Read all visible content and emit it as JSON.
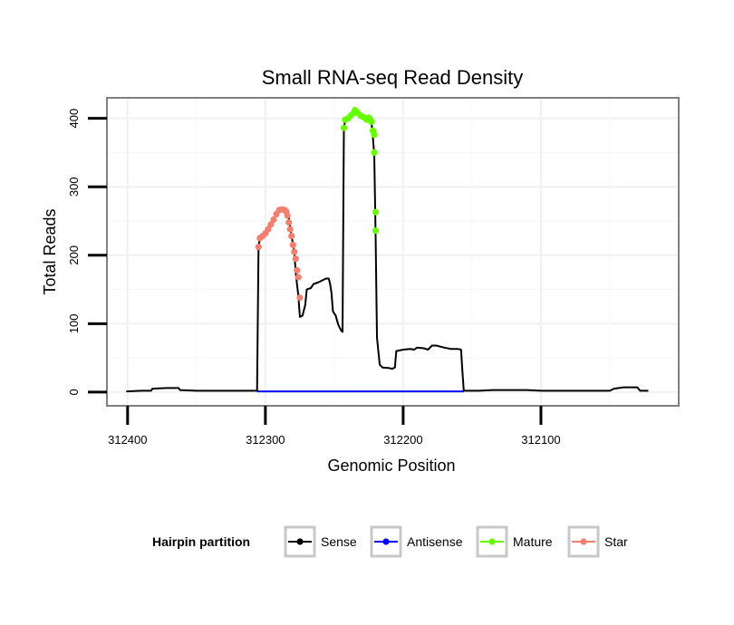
{
  "chart_data": {
    "type": "line",
    "title": "Small RNA-seq Read Density",
    "xlabel": "Genomic Position",
    "ylabel": "Total Reads",
    "xlim": [
      312000,
      312415
    ],
    "x_reversed": true,
    "ylim": [
      -20,
      430
    ],
    "x_ticks": [
      312400,
      312300,
      312200,
      312100
    ],
    "x_tick_labels": [
      "312400",
      "312300",
      "312200",
      "312100"
    ],
    "y_ticks": [
      0,
      100,
      200,
      300,
      400
    ],
    "y_tick_labels": [
      "0",
      "100",
      "200",
      "300",
      "400"
    ],
    "grid": true,
    "legend": {
      "title": "Hairpin partition",
      "position": "bottom",
      "entries": [
        {
          "name": "Sense",
          "color": "#000000"
        },
        {
          "name": "Antisense",
          "color": "#0000ff"
        },
        {
          "name": "Mature",
          "color": "#66ff00"
        },
        {
          "name": "Star",
          "color": "#f08070"
        }
      ]
    },
    "series": [
      {
        "name": "Sense",
        "color": "#000000",
        "markers": false,
        "points": [
          [
            312401,
            1
          ],
          [
            312390,
            2
          ],
          [
            312383,
            2
          ],
          [
            312382,
            5
          ],
          [
            312372,
            6
          ],
          [
            312363,
            6
          ],
          [
            312362,
            3
          ],
          [
            312350,
            2
          ],
          [
            312306,
            2
          ],
          [
            312305,
            212
          ],
          [
            312304,
            225
          ],
          [
            312300,
            232
          ],
          [
            312296,
            245
          ],
          [
            312292,
            260
          ],
          [
            312288,
            266
          ],
          [
            312285,
            265
          ],
          [
            312283,
            255
          ],
          [
            312281,
            228
          ],
          [
            312279,
            205
          ],
          [
            312278,
            175
          ],
          [
            312276,
            140
          ],
          [
            312275,
            110
          ],
          [
            312273,
            112
          ],
          [
            312271,
            128
          ],
          [
            312270,
            150
          ],
          [
            312267,
            152
          ],
          [
            312265,
            158
          ],
          [
            312262,
            160
          ],
          [
            312260,
            162
          ],
          [
            312258,
            164
          ],
          [
            312256,
            166
          ],
          [
            312254,
            166
          ],
          [
            312253,
            158
          ],
          [
            312252,
            145
          ],
          [
            312251,
            118
          ],
          [
            312249,
            112
          ],
          [
            312247,
            98
          ],
          [
            312245,
            90
          ],
          [
            312244,
            88
          ],
          [
            312243,
            386
          ],
          [
            312242,
            398
          ],
          [
            312238,
            404
          ],
          [
            312235,
            410
          ],
          [
            312230,
            405
          ],
          [
            312226,
            400
          ],
          [
            312223,
            395
          ],
          [
            312222,
            372
          ],
          [
            312221,
            348
          ],
          [
            312220,
            230
          ],
          [
            312219,
            80
          ],
          [
            312218,
            60
          ],
          [
            312217,
            40
          ],
          [
            312215,
            36
          ],
          [
            312210,
            35
          ],
          [
            312208,
            34
          ],
          [
            312206,
            36
          ],
          [
            312205,
            60
          ],
          [
            312200,
            62
          ],
          [
            312195,
            63
          ],
          [
            312192,
            62
          ],
          [
            312190,
            65
          ],
          [
            312185,
            64
          ],
          [
            312182,
            62
          ],
          [
            312179,
            68
          ],
          [
            312176,
            68
          ],
          [
            312170,
            65
          ],
          [
            312165,
            63
          ],
          [
            312160,
            63
          ],
          [
            312158,
            62
          ],
          [
            312157,
            30
          ],
          [
            312156,
            2
          ],
          [
            312145,
            2
          ],
          [
            312135,
            3
          ],
          [
            312125,
            3
          ],
          [
            312110,
            3
          ],
          [
            312100,
            2
          ],
          [
            312075,
            2
          ],
          [
            312050,
            2
          ],
          [
            312047,
            5
          ],
          [
            312040,
            7
          ],
          [
            312030,
            7
          ],
          [
            312028,
            2
          ],
          [
            312022,
            2
          ]
        ]
      },
      {
        "name": "Antisense",
        "color": "#0000ff",
        "markers": false,
        "points": [
          [
            312306,
            1
          ],
          [
            312156,
            1
          ]
        ]
      },
      {
        "name": "Star",
        "color": "#f08070",
        "markers": true,
        "points": [
          [
            312305,
            212
          ],
          [
            312304,
            225
          ],
          [
            312302,
            228
          ],
          [
            312300,
            232
          ],
          [
            312298,
            238
          ],
          [
            312296,
            245
          ],
          [
            312294,
            252
          ],
          [
            312292,
            260
          ],
          [
            312290,
            266
          ],
          [
            312288,
            267
          ],
          [
            312286,
            266
          ],
          [
            312285,
            264
          ],
          [
            312284,
            258
          ],
          [
            312283,
            248
          ],
          [
            312282,
            238
          ],
          [
            312281,
            228
          ],
          [
            312280,
            215
          ],
          [
            312279,
            205
          ],
          [
            312278,
            195
          ],
          [
            312277,
            178
          ],
          [
            312276,
            168
          ],
          [
            312275,
            138
          ]
        ]
      },
      {
        "name": "Mature",
        "color": "#66ff00",
        "markers": true,
        "points": [
          [
            312243,
            386
          ],
          [
            312242,
            398
          ],
          [
            312240,
            400
          ],
          [
            312238,
            404
          ],
          [
            312236,
            408
          ],
          [
            312235,
            412
          ],
          [
            312233,
            408
          ],
          [
            312231,
            404
          ],
          [
            312229,
            402
          ],
          [
            312227,
            399
          ],
          [
            312226,
            398
          ],
          [
            312225,
            401
          ],
          [
            312224,
            398
          ],
          [
            312223,
            395
          ],
          [
            312222,
            382
          ],
          [
            312221,
            376
          ],
          [
            312221,
            350
          ],
          [
            312220,
            263
          ],
          [
            312220,
            236
          ]
        ]
      }
    ]
  }
}
